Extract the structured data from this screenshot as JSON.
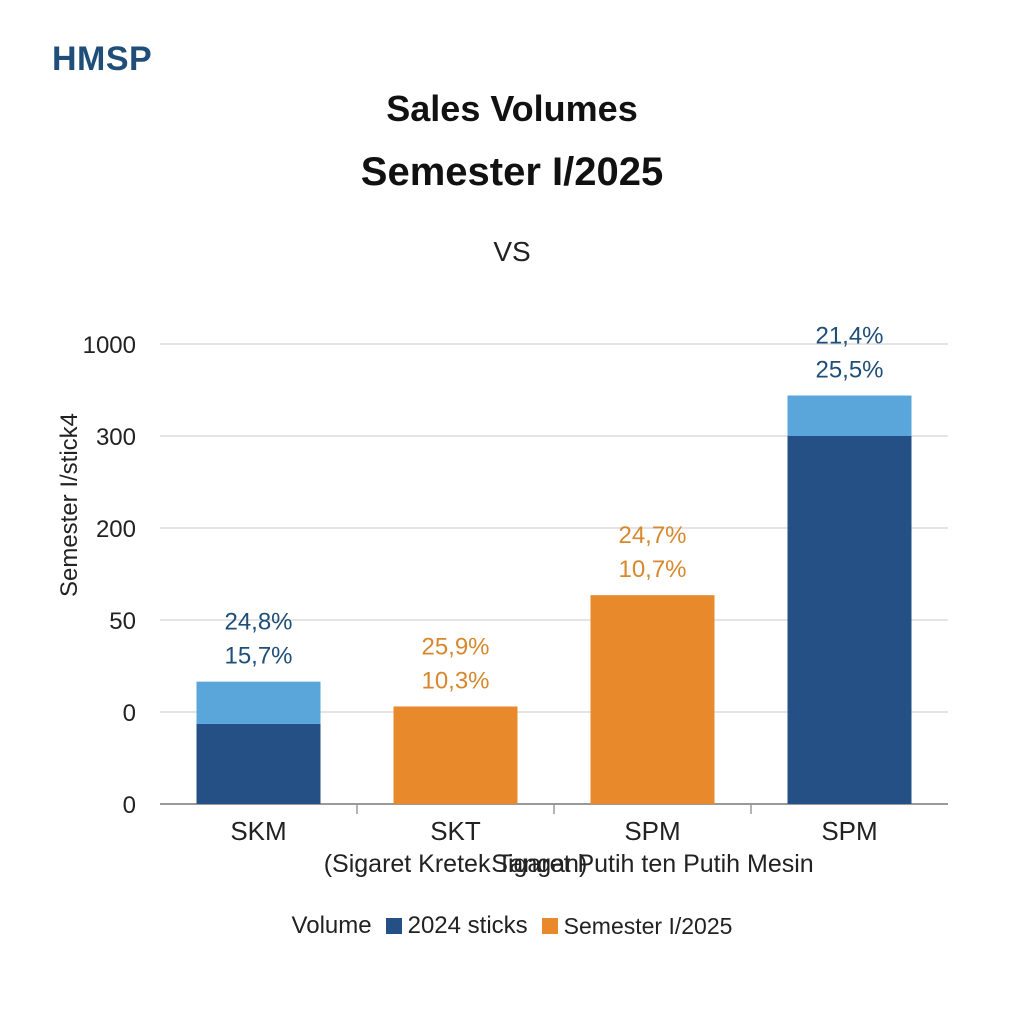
{
  "brand": "HMSP",
  "chart_data": {
    "type": "bar",
    "title": "Sales Volumes",
    "subtitle": "Semester I/2025",
    "comparison_label": "VS",
    "ylabel": "Semester  I/stick4",
    "xlabel": "",
    "ytick_labels": [
      "0",
      "0",
      "50",
      "200",
      "300",
      "1000"
    ],
    "ytick_values": [
      0,
      1,
      2,
      3,
      4,
      5
    ],
    "ylim": [
      0,
      5
    ],
    "grid": true,
    "legend_position": "bottom-center",
    "categories": [
      {
        "line1": "SKM",
        "line2": ""
      },
      {
        "line1": "SKT",
        "line2": "(Sigaret Kretek Tangan)"
      },
      {
        "line1": "SPM",
        "line2": "Sigaret Putih ten Putih Mesin"
      },
      {
        "line1": "SPM",
        "line2": ""
      }
    ],
    "bars": [
      {
        "base_value": 0.87,
        "top_value": 1.33,
        "base_color": "#245086",
        "top_color": "#5aa5da",
        "label_color": "#1f4e79",
        "labels": [
          "24,8%",
          "15,7%"
        ]
      },
      {
        "base_value": 1.06,
        "top_value": 1.06,
        "base_color": "#e8892c",
        "top_color": "#e8892c",
        "label_color": "#d8882c",
        "labels": [
          "25,9%",
          "10,3%"
        ]
      },
      {
        "base_value": 2.27,
        "top_value": 2.27,
        "base_color": "#e8892c",
        "top_color": "#e8892c",
        "label_color": "#d8882c",
        "labels": [
          "24,7%",
          "10,7%"
        ]
      },
      {
        "base_value": 4.0,
        "top_value": 4.44,
        "base_color": "#245086",
        "top_color": "#5aa5da",
        "label_color": "#1f4e79",
        "labels": [
          "21,4%",
          "25,5%"
        ]
      }
    ],
    "legend": {
      "prefix": "Volume",
      "items": [
        {
          "label": "2024 sticks",
          "color": "#245086"
        },
        {
          "label": "Semester I/2025",
          "color": "#e8892c"
        }
      ]
    },
    "colors": {
      "grid": "#dcdcdc",
      "axis": "#9a9a9a",
      "text": "#222222"
    }
  }
}
